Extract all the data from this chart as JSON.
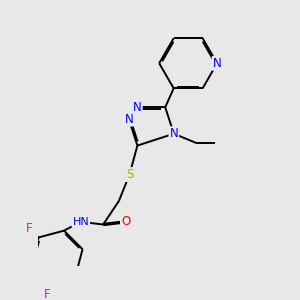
{
  "background_color": "#e8e8e8",
  "bond_color": "#000000",
  "atom_colors": {
    "N": "#0000ff",
    "O": "#ff0000",
    "S": "#aaaa00",
    "F": "#ee00ee",
    "C": "#000000",
    "H": "#000000"
  },
  "bond_width": 1.4,
  "dbo": 0.06,
  "figsize": [
    3.0,
    3.0
  ],
  "dpi": 100
}
